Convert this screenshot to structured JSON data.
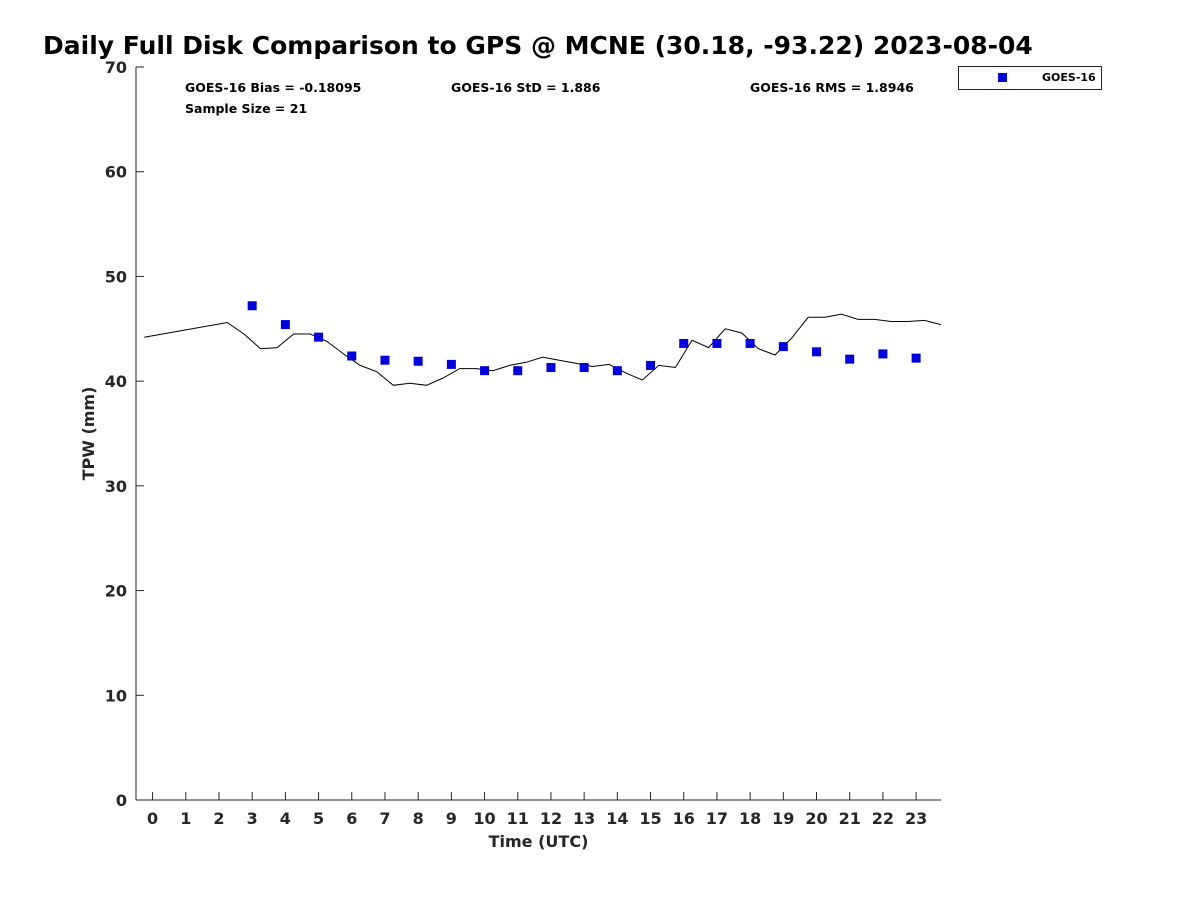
{
  "chart_data": {
    "type": "scatter",
    "title": "Daily Full Disk Comparison to GPS @ MCNE (30.18, -93.22) 2023-08-04",
    "xlabel": "Time (UTC)",
    "ylabel": "TPW (mm)",
    "xlim": [
      -0.5,
      23.75
    ],
    "ylim": [
      0,
      70
    ],
    "x_ticks": [
      0,
      1,
      2,
      3,
      4,
      5,
      6,
      7,
      8,
      9,
      10,
      11,
      12,
      13,
      14,
      15,
      16,
      17,
      18,
      19,
      20,
      21,
      22,
      23
    ],
    "x_tick_labels": [
      "0",
      "1",
      "2",
      "3",
      "4",
      "5",
      "6",
      "7",
      "8",
      "9",
      "10",
      "11",
      "12",
      "13",
      "14",
      "15",
      "16",
      "17",
      "18",
      "19",
      "20",
      "21",
      "22",
      "23"
    ],
    "y_ticks": [
      0,
      10,
      20,
      30,
      40,
      50,
      60,
      70
    ],
    "y_tick_labels": [
      "0",
      "10",
      "20",
      "30",
      "40",
      "50",
      "60",
      "70"
    ],
    "grid": false,
    "legend_position": "outside top-right",
    "series": [
      {
        "name": "GOES-16",
        "marker": "square",
        "color": "#0000dd",
        "x": [
          3,
          4,
          5,
          6,
          7,
          8,
          9,
          10,
          11,
          12,
          13,
          14,
          15,
          16,
          17,
          18,
          19,
          20,
          21,
          22,
          23
        ],
        "y": [
          47.2,
          45.4,
          44.2,
          42.4,
          42.0,
          41.9,
          41.6,
          41.0,
          41.0,
          41.3,
          41.3,
          41.0,
          41.5,
          43.6,
          43.6,
          43.6,
          43.3,
          42.8,
          42.1,
          42.6,
          42.2
        ]
      },
      {
        "marker": "line",
        "color": "#000000",
        "x": [
          -0.25,
          2.25,
          2.75,
          3.25,
          3.75,
          4.25,
          4.75,
          5.25,
          5.75,
          6.25,
          6.75,
          7.25,
          7.75,
          8.25,
          8.75,
          9.25,
          9.75,
          10.25,
          10.75,
          11.25,
          11.75,
          12.25,
          12.75,
          13.25,
          13.75,
          14.25,
          14.75,
          15.25,
          15.75,
          16.25,
          16.75,
          17.25,
          17.75,
          18.25,
          18.75,
          19.25,
          19.75,
          20.25,
          20.75,
          21.25,
          21.75,
          22.25,
          22.75,
          23.25,
          23.75
        ],
        "y": [
          44.2,
          45.6,
          44.5,
          43.1,
          43.2,
          44.5,
          44.5,
          43.8,
          42.6,
          41.5,
          40.9,
          39.6,
          39.8,
          39.6,
          40.3,
          41.2,
          41.2,
          41.0,
          41.5,
          41.8,
          42.3,
          42.0,
          41.7,
          41.4,
          41.6,
          40.8,
          40.1,
          41.5,
          41.3,
          43.9,
          43.2,
          45.0,
          44.6,
          43.1,
          42.5,
          44.1,
          46.1,
          46.1,
          46.4,
          45.9,
          45.9,
          45.7,
          45.7,
          45.8,
          45.4
        ]
      }
    ],
    "stats": {
      "bias": "GOES-16 Bias = -0.18095",
      "std": "GOES-16 StD = 1.886",
      "rms": "GOES-16 RMS = 1.8946",
      "sample_size": "Sample Size = 21"
    }
  }
}
